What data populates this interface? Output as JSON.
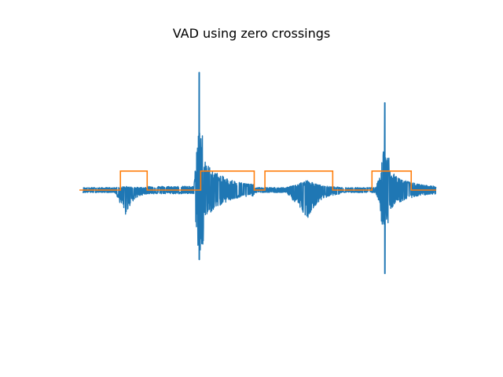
{
  "chart_data": {
    "type": "line",
    "title": "VAD using zero crossings",
    "xlabel": "",
    "ylabel": "",
    "axes_visible": false,
    "grid": false,
    "legend": "none",
    "xlim": [
      0,
      100
    ],
    "ylim": [
      -1.05,
      1.05
    ],
    "series": [
      {
        "key": "signal",
        "color": "#1f77b4",
        "segments": [
          {
            "start": 1,
            "onset": 10,
            "peak": 13,
            "end": 19,
            "pos": 0.03,
            "neg": -0.2,
            "posSpike": 0.0,
            "negSpike": 0.0,
            "spikeAt": 0,
            "tail": 0.02
          },
          {
            "start": 19,
            "onset": 32,
            "peak": 33.5,
            "end": 49,
            "pos": 0.3,
            "neg": -0.3,
            "posSpike": 0.93,
            "negSpike": -0.55,
            "spikeAt": 33.6,
            "tail": 0.03
          },
          {
            "start": 49,
            "onset": 58,
            "peak": 64,
            "end": 73,
            "pos": 0.08,
            "neg": -0.22,
            "posSpike": 0.0,
            "negSpike": 0.0,
            "spikeAt": 0,
            "tail": 0.02
          },
          {
            "start": 73,
            "onset": 83,
            "peak": 85.5,
            "end": 100,
            "pos": 0.2,
            "neg": -0.2,
            "posSpike": 0.69,
            "negSpike": -0.66,
            "spikeAt": 85.6,
            "tail": 0.02
          }
        ]
      },
      {
        "key": "vad",
        "color": "#ff7f0e",
        "x": [
          0,
          11.5,
          11.5,
          19,
          19,
          34,
          34,
          49,
          49,
          52,
          52,
          71,
          71,
          82,
          82,
          93,
          93,
          100
        ],
        "y": [
          0,
          0,
          0.15,
          0.15,
          0,
          0,
          0.15,
          0.15,
          0,
          0,
          0.15,
          0.15,
          0,
          0,
          0.15,
          0.15,
          0,
          0
        ]
      }
    ]
  }
}
